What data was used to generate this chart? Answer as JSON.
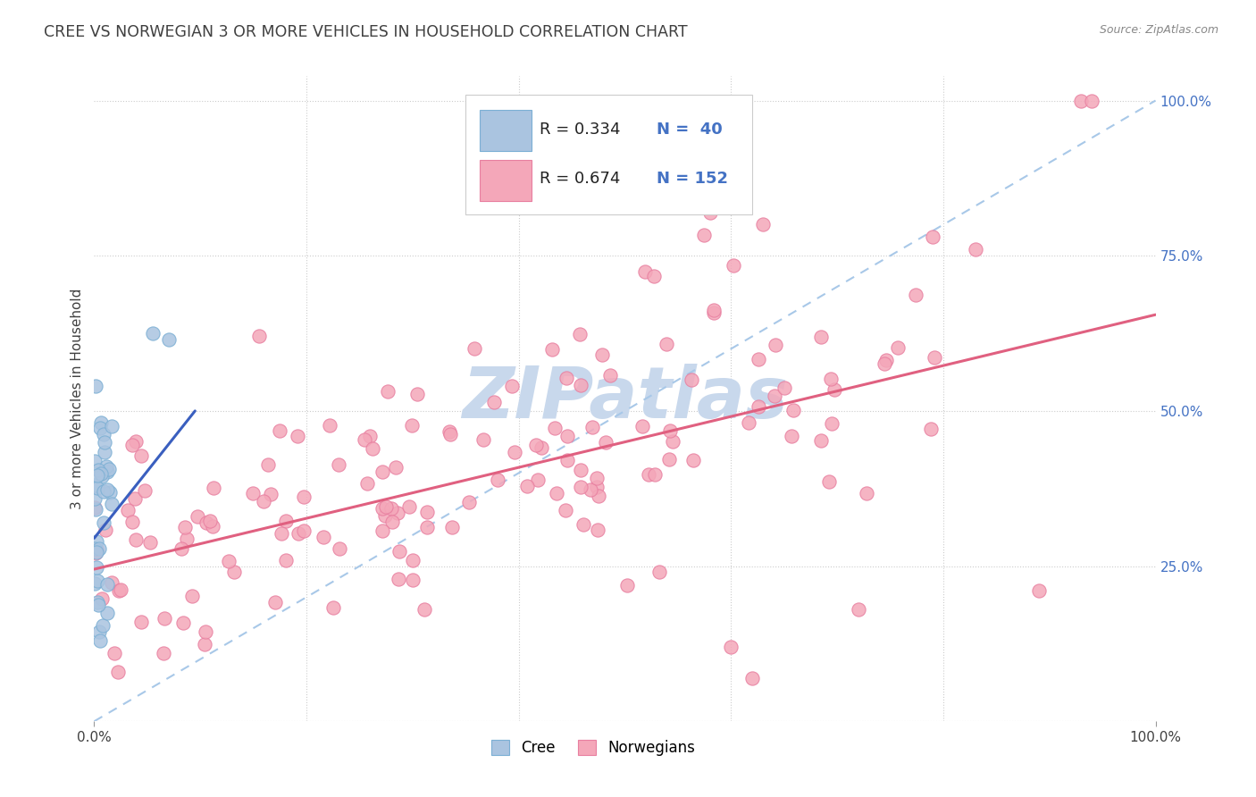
{
  "title": "CREE VS NORWEGIAN 3 OR MORE VEHICLES IN HOUSEHOLD CORRELATION CHART",
  "source": "Source: ZipAtlas.com",
  "ylabel": "3 or more Vehicles in Household",
  "cree_color": "#aac4e0",
  "cree_edge_color": "#7bafd4",
  "norwegian_color": "#f4a7b9",
  "norwegian_edge_color": "#e87fa0",
  "cree_line_color": "#3a5fbf",
  "norwegian_line_color": "#e06080",
  "diagonal_color": "#a8c8e8",
  "background_color": "#ffffff",
  "grid_color": "#cccccc",
  "title_color": "#404040",
  "source_color": "#888888",
  "watermark_color": "#c8d8ec",
  "xlim": [
    0.0,
    1.0
  ],
  "ylim": [
    0.0,
    1.0
  ]
}
